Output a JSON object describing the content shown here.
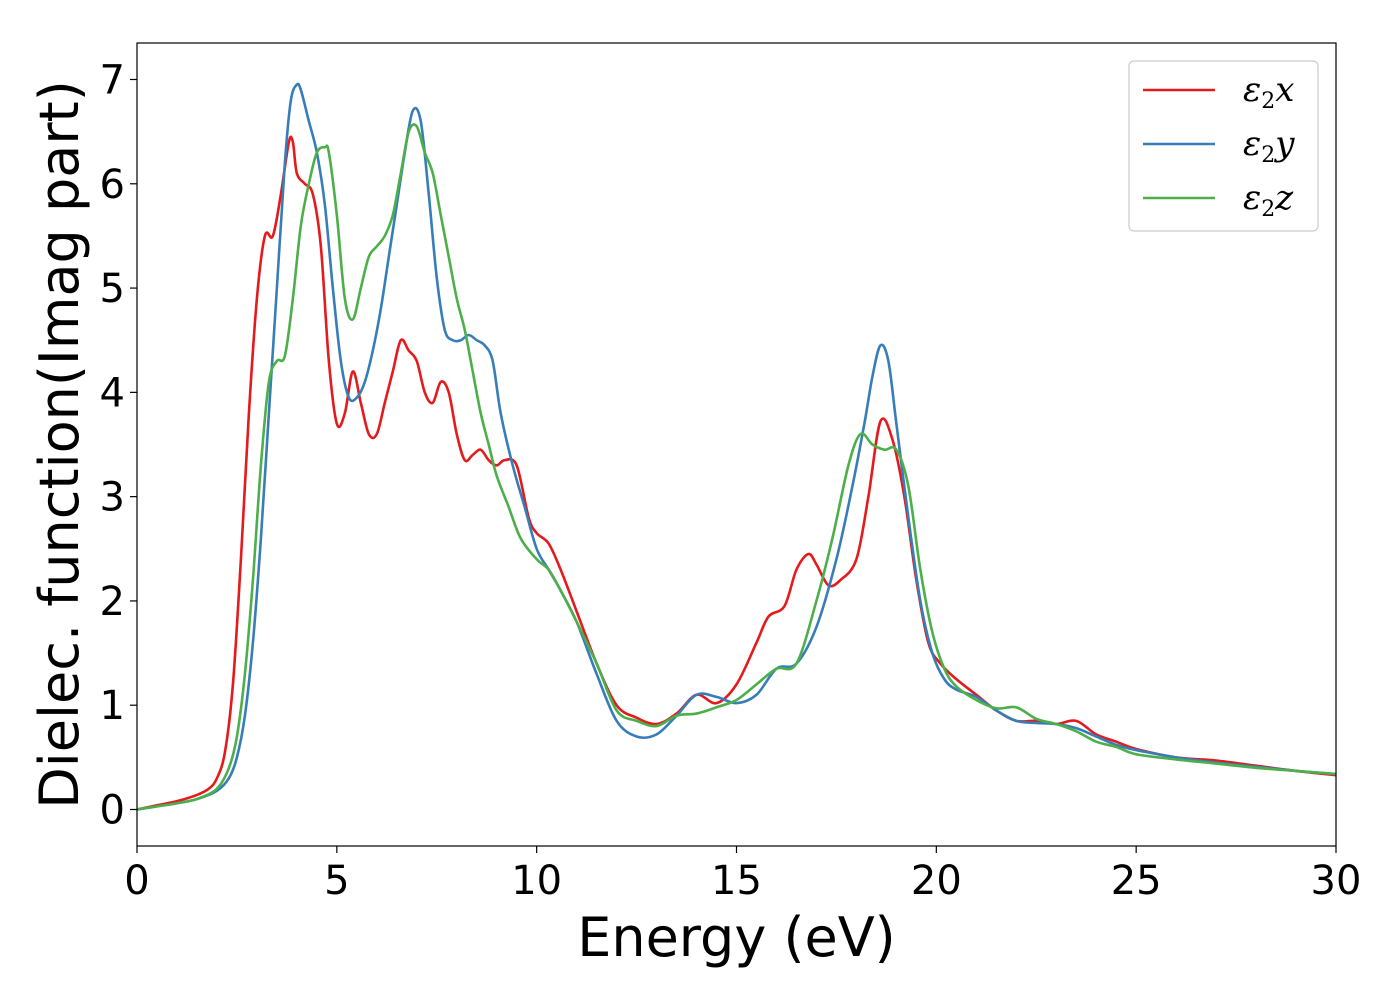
{
  "chart_data": {
    "type": "line",
    "xlabel": "Energy (eV)",
    "ylabel": "Dielec. function(Imag part)",
    "xlim": [
      0,
      30
    ],
    "ylim": [
      -0.35,
      7.35
    ],
    "xticks": [
      0,
      5,
      10,
      15,
      20,
      25,
      30
    ],
    "yticks": [
      0,
      1,
      2,
      3,
      4,
      5,
      6,
      7
    ],
    "grid": false,
    "legend_position": "top-right",
    "series": [
      {
        "name": "ε2x",
        "legend_base": "ε",
        "legend_sub": "2",
        "legend_var": "x",
        "color": "#e41a1c",
        "x": [
          0,
          0.5,
          1,
          1.5,
          1.8,
          2.0,
          2.2,
          2.4,
          2.6,
          2.8,
          3.0,
          3.2,
          3.4,
          3.6,
          3.8,
          3.9,
          4.0,
          4.2,
          4.4,
          4.6,
          4.8,
          5.0,
          5.2,
          5.4,
          5.6,
          5.8,
          6.0,
          6.2,
          6.4,
          6.6,
          6.8,
          7.0,
          7.2,
          7.4,
          7.6,
          7.8,
          8.0,
          8.2,
          8.4,
          8.6,
          8.8,
          9.0,
          9.2,
          9.5,
          9.8,
          10.0,
          10.3,
          10.6,
          11.0,
          11.5,
          12.0,
          12.5,
          13.0,
          13.5,
          14.0,
          14.5,
          15.0,
          15.5,
          15.8,
          16.2,
          16.5,
          16.8,
          17.0,
          17.3,
          17.6,
          18.0,
          18.3,
          18.6,
          18.9,
          19.2,
          19.5,
          19.8,
          20.1,
          20.5,
          21.0,
          21.5,
          22.0,
          22.5,
          23.0,
          23.5,
          24.0,
          24.5,
          25.0,
          26.0,
          27.0,
          28.0,
          29.0,
          30.0
        ],
        "y": [
          0.0,
          0.04,
          0.08,
          0.14,
          0.2,
          0.3,
          0.55,
          1.2,
          2.4,
          3.8,
          4.9,
          5.5,
          5.5,
          5.9,
          6.4,
          6.4,
          6.1,
          6.0,
          5.9,
          5.4,
          4.3,
          3.7,
          3.8,
          4.2,
          3.9,
          3.6,
          3.6,
          3.9,
          4.2,
          4.5,
          4.4,
          4.3,
          4.0,
          3.9,
          4.1,
          4.0,
          3.6,
          3.35,
          3.4,
          3.45,
          3.35,
          3.3,
          3.35,
          3.3,
          2.8,
          2.65,
          2.55,
          2.3,
          1.9,
          1.4,
          1.0,
          0.88,
          0.82,
          0.92,
          1.1,
          1.02,
          1.2,
          1.6,
          1.85,
          1.95,
          2.3,
          2.45,
          2.35,
          2.15,
          2.2,
          2.4,
          3.0,
          3.72,
          3.55,
          3.0,
          2.2,
          1.6,
          1.4,
          1.25,
          1.1,
          0.95,
          0.85,
          0.85,
          0.82,
          0.85,
          0.72,
          0.65,
          0.58,
          0.5,
          0.47,
          0.42,
          0.37,
          0.33
        ]
      },
      {
        "name": "ε2y",
        "legend_base": "ε",
        "legend_sub": "2",
        "legend_var": "y",
        "color": "#377eb8",
        "x": [
          0,
          0.5,
          1,
          1.5,
          2.0,
          2.3,
          2.5,
          2.7,
          2.9,
          3.1,
          3.3,
          3.5,
          3.7,
          3.85,
          4.0,
          4.1,
          4.3,
          4.5,
          4.7,
          4.9,
          5.1,
          5.3,
          5.5,
          5.7,
          5.9,
          6.1,
          6.3,
          6.5,
          6.7,
          6.9,
          7.1,
          7.3,
          7.5,
          7.7,
          7.9,
          8.1,
          8.3,
          8.5,
          8.7,
          8.9,
          9.1,
          9.4,
          9.7,
          10.0,
          10.3,
          10.6,
          11.0,
          11.5,
          12.0,
          12.5,
          13.0,
          13.5,
          14.0,
          14.5,
          15.0,
          15.5,
          16.0,
          16.5,
          17.0,
          17.5,
          17.9,
          18.2,
          18.4,
          18.6,
          18.8,
          19.0,
          19.3,
          19.6,
          19.9,
          20.2,
          20.5,
          21.0,
          21.5,
          22.0,
          22.5,
          23.0,
          23.5,
          24.0,
          24.5,
          25.0,
          26.0,
          27.0,
          28.0,
          29.0,
          30.0
        ],
        "y": [
          0.0,
          0.03,
          0.06,
          0.1,
          0.18,
          0.3,
          0.5,
          0.9,
          1.6,
          2.6,
          3.8,
          5.0,
          6.2,
          6.8,
          6.95,
          6.9,
          6.6,
          6.3,
          5.8,
          5.0,
          4.3,
          3.95,
          3.95,
          4.1,
          4.4,
          4.8,
          5.3,
          5.8,
          6.3,
          6.7,
          6.6,
          5.9,
          5.1,
          4.6,
          4.5,
          4.5,
          4.55,
          4.5,
          4.45,
          4.3,
          3.8,
          3.3,
          2.9,
          2.5,
          2.3,
          2.1,
          1.8,
          1.3,
          0.85,
          0.7,
          0.72,
          0.9,
          1.1,
          1.08,
          1.02,
          1.1,
          1.35,
          1.4,
          1.75,
          2.4,
          3.1,
          3.7,
          4.15,
          4.45,
          4.3,
          3.7,
          2.8,
          2.0,
          1.5,
          1.25,
          1.15,
          1.08,
          0.95,
          0.85,
          0.83,
          0.82,
          0.78,
          0.7,
          0.62,
          0.57,
          0.5,
          0.45,
          0.41,
          0.37,
          0.34
        ]
      },
      {
        "name": "ε2z",
        "legend_base": "ε",
        "legend_sub": "2",
        "legend_var": "z",
        "color": "#4daf4a",
        "x": [
          0,
          0.5,
          1,
          1.5,
          2.0,
          2.3,
          2.5,
          2.7,
          2.9,
          3.1,
          3.3,
          3.5,
          3.7,
          3.9,
          4.1,
          4.3,
          4.5,
          4.7,
          4.8,
          5.0,
          5.2,
          5.4,
          5.6,
          5.8,
          6.0,
          6.2,
          6.4,
          6.6,
          6.8,
          7.0,
          7.2,
          7.4,
          7.6,
          7.8,
          8.0,
          8.2,
          8.4,
          8.6,
          8.8,
          9.0,
          9.3,
          9.6,
          10.0,
          10.3,
          10.6,
          11.0,
          11.5,
          12.0,
          12.5,
          13.0,
          13.5,
          14.0,
          14.5,
          15.0,
          15.5,
          16.0,
          16.5,
          17.0,
          17.4,
          17.8,
          18.1,
          18.4,
          18.7,
          19.0,
          19.3,
          19.6,
          19.9,
          20.2,
          20.5,
          21.0,
          21.5,
          22.0,
          22.5,
          23.0,
          23.5,
          24.0,
          24.5,
          25.0,
          26.0,
          27.0,
          28.0,
          29.0,
          30.0
        ],
        "y": [
          0.0,
          0.03,
          0.06,
          0.1,
          0.2,
          0.4,
          0.7,
          1.3,
          2.2,
          3.3,
          4.1,
          4.3,
          4.35,
          4.9,
          5.6,
          6.0,
          6.3,
          6.35,
          6.3,
          5.7,
          4.9,
          4.7,
          5.0,
          5.3,
          5.4,
          5.5,
          5.7,
          6.1,
          6.5,
          6.55,
          6.3,
          6.1,
          5.7,
          5.3,
          4.9,
          4.6,
          4.2,
          3.8,
          3.5,
          3.2,
          2.9,
          2.6,
          2.4,
          2.3,
          2.1,
          1.8,
          1.4,
          0.95,
          0.85,
          0.8,
          0.9,
          0.92,
          0.98,
          1.05,
          1.2,
          1.35,
          1.4,
          2.0,
          2.6,
          3.3,
          3.6,
          3.5,
          3.45,
          3.45,
          3.1,
          2.3,
          1.7,
          1.35,
          1.18,
          1.05,
          0.97,
          0.98,
          0.87,
          0.82,
          0.75,
          0.65,
          0.6,
          0.53,
          0.48,
          0.44,
          0.4,
          0.37,
          0.34
        ]
      }
    ]
  }
}
